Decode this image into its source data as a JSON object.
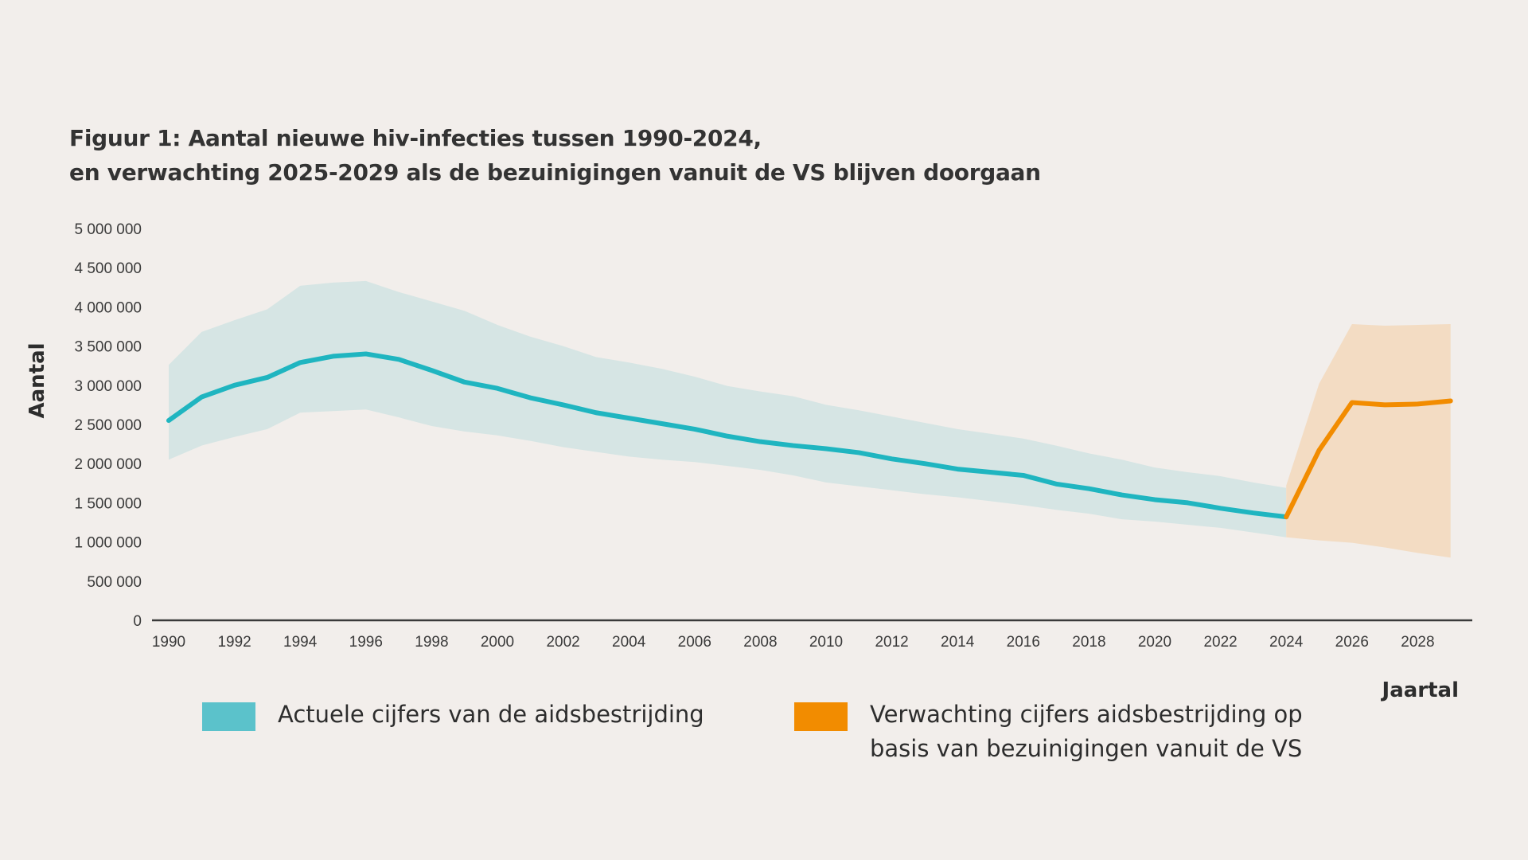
{
  "chart_data": {
    "type": "line",
    "title": "Figuur 1: Aantal nieuwe hiv-infecties tussen 1990-2024,",
    "subtitle": "en verwachting 2025-2029 als de bezuinigingen vanuit de VS blijven doorgaan",
    "xlabel": "Jaartal",
    "ylabel": "Aantal",
    "xlim": [
      1990,
      2029
    ],
    "ylim": [
      0,
      5000000
    ],
    "grid": false,
    "legend_position": "bottom",
    "y_ticks": [
      0,
      500000,
      1000000,
      1500000,
      2000000,
      2500000,
      3000000,
      3500000,
      4000000,
      4500000,
      5000000
    ],
    "y_tick_labels": [
      "0",
      "500 000",
      "1 000 000",
      "1 500 000",
      "2 000 000",
      "2 500 000",
      "3 000 000",
      "3 500 000",
      "4 000 000",
      "4 500 000",
      "5 000 000"
    ],
    "x_tick_labels": [
      "1990",
      "1992",
      "1994",
      "1996",
      "1998",
      "2000",
      "2002",
      "2004",
      "2006",
      "2008",
      "2010",
      "2012",
      "2014",
      "2016",
      "2018",
      "2020",
      "2022",
      "2024",
      "2026",
      "2028"
    ],
    "series": [
      {
        "name": "Actuele cijfers van de aidsbestrijding",
        "color": "#1fb5c0",
        "band_color": "#d6e5e4",
        "legend_color": "#5bc2cb",
        "x": [
          1990,
          1991,
          1992,
          1993,
          1994,
          1995,
          1996,
          1997,
          1998,
          1999,
          2000,
          2001,
          2002,
          2003,
          2004,
          2005,
          2006,
          2007,
          2008,
          2009,
          2010,
          2011,
          2012,
          2013,
          2014,
          2015,
          2016,
          2017,
          2018,
          2019,
          2020,
          2021,
          2022,
          2023,
          2024
        ],
        "values": [
          2550000,
          2850000,
          3000000,
          3100000,
          3290000,
          3370000,
          3400000,
          3330000,
          3190000,
          3040000,
          2960000,
          2840000,
          2750000,
          2650000,
          2580000,
          2510000,
          2440000,
          2350000,
          2280000,
          2230000,
          2190000,
          2140000,
          2060000,
          2000000,
          1930000,
          1890000,
          1850000,
          1740000,
          1680000,
          1600000,
          1540000,
          1500000,
          1430000,
          1370000,
          1320000
        ],
        "upper": [
          3260000,
          3680000,
          3830000,
          3970000,
          4270000,
          4310000,
          4330000,
          4190000,
          4070000,
          3950000,
          3770000,
          3620000,
          3500000,
          3360000,
          3290000,
          3210000,
          3110000,
          2990000,
          2920000,
          2860000,
          2750000,
          2680000,
          2600000,
          2520000,
          2440000,
          2380000,
          2320000,
          2230000,
          2130000,
          2050000,
          1950000,
          1890000,
          1840000,
          1760000,
          1690000
        ],
        "lower": [
          2050000,
          2230000,
          2340000,
          2440000,
          2650000,
          2670000,
          2690000,
          2590000,
          2480000,
          2410000,
          2360000,
          2290000,
          2210000,
          2150000,
          2090000,
          2050000,
          2020000,
          1970000,
          1920000,
          1850000,
          1760000,
          1710000,
          1660000,
          1610000,
          1570000,
          1520000,
          1470000,
          1410000,
          1360000,
          1290000,
          1260000,
          1220000,
          1180000,
          1120000,
          1060000
        ]
      },
      {
        "name": "Verwachting cijfers aidsbestrijding op basis van bezuinigingen vanuit de VS",
        "color": "#f28c00",
        "band_color": "#f3dcc3",
        "legend_color": "#f28c00",
        "x": [
          2024,
          2025,
          2026,
          2027,
          2028,
          2029
        ],
        "values": [
          1320000,
          2170000,
          2780000,
          2750000,
          2760000,
          2800000
        ],
        "upper": [
          1720000,
          3020000,
          3780000,
          3760000,
          3770000,
          3780000
        ],
        "lower": [
          1060000,
          1020000,
          990000,
          930000,
          860000,
          800000
        ]
      }
    ]
  },
  "legend": {
    "items": [
      {
        "label_lines": [
          "Actuele cijfers van de aidsbestrijding"
        ]
      },
      {
        "label_lines": [
          "Verwachting cijfers aidsbestrijding op",
          "basis van bezuinigingen vanuit de VS"
        ]
      }
    ]
  }
}
